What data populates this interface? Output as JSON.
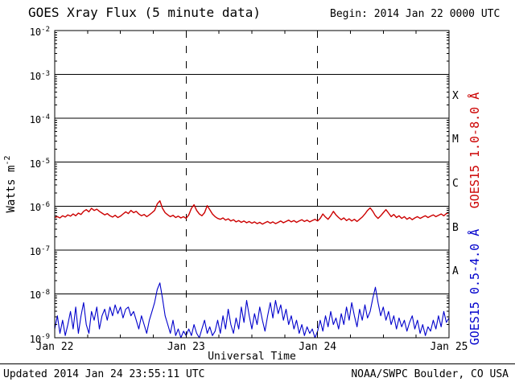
{
  "header": {
    "title": "GOES Xray Flux (5 minute data)",
    "begin_label": "Begin:  2014 Jan 22 0000 UTC"
  },
  "axes": {
    "ylabel_text": "Watts m",
    "ylabel_sup": "-2",
    "xlabel": "Universal Time"
  },
  "series_labels": {
    "long": "GOES15 1.0-8.0 Å",
    "short": "GOES15 0.5-4.0 Å"
  },
  "colors": {
    "long": "#cc0000",
    "short": "#0000cc",
    "axis": "#000000",
    "background": "#ffffff"
  },
  "footer": {
    "updated": "Updated 2014 Jan 24 23:55:11 UTC",
    "source": "NOAA/SWPC Boulder, CO USA"
  },
  "chart_data": {
    "type": "line",
    "title": "GOES Xray Flux (5 minute data)",
    "x_axis": {
      "label": "Universal Time",
      "start": "2014 Jan 22 0000 UTC",
      "span_days": 3,
      "tick_days": [
        0,
        1,
        2,
        3
      ],
      "tick_labels": [
        "Jan 22",
        "Jan 23",
        "Jan 24",
        "Jan 25"
      ],
      "grid_days": [
        1,
        2
      ],
      "minor_tick_interval_days": 0.25
    },
    "y_axis": {
      "label": "Watts m^-2",
      "scale": "log10",
      "max_exp": -2,
      "min_exp": -9,
      "tick_exponents": [
        -2,
        -3,
        -4,
        -5,
        -6,
        -7,
        -8,
        -9
      ],
      "grid_exponents": [
        -3,
        -4,
        -5,
        -6,
        -7,
        -8
      ],
      "flux_classes": [
        {
          "letter": "X",
          "between_exp": [
            -4,
            -3
          ]
        },
        {
          "letter": "M",
          "between_exp": [
            -5,
            -4
          ]
        },
        {
          "letter": "C",
          "between_exp": [
            -6,
            -5
          ]
        },
        {
          "letter": "B",
          "between_exp": [
            -7,
            -6
          ]
        },
        {
          "letter": "A",
          "between_exp": [
            -8,
            -7
          ]
        }
      ]
    },
    "series": [
      {
        "name": "GOES15 1.0-8.0 Å",
        "color": "#cc0000",
        "log10_flux": [
          -6.26,
          -6.24,
          -6.27,
          -6.22,
          -6.25,
          -6.2,
          -6.23,
          -6.18,
          -6.22,
          -6.16,
          -6.19,
          -6.12,
          -6.08,
          -6.13,
          -6.05,
          -6.1,
          -6.07,
          -6.12,
          -6.16,
          -6.2,
          -6.17,
          -6.22,
          -6.25,
          -6.21,
          -6.26,
          -6.23,
          -6.18,
          -6.13,
          -6.17,
          -6.1,
          -6.15,
          -6.12,
          -6.18,
          -6.22,
          -6.19,
          -6.24,
          -6.2,
          -6.15,
          -6.1,
          -5.95,
          -5.88,
          -6.05,
          -6.15,
          -6.2,
          -6.24,
          -6.21,
          -6.26,
          -6.23,
          -6.27,
          -6.24,
          -6.28,
          -6.2,
          -6.05,
          -5.97,
          -6.1,
          -6.18,
          -6.22,
          -6.15,
          -5.99,
          -6.08,
          -6.18,
          -6.24,
          -6.28,
          -6.3,
          -6.27,
          -6.32,
          -6.29,
          -6.34,
          -6.31,
          -6.36,
          -6.33,
          -6.37,
          -6.34,
          -6.38,
          -6.35,
          -6.39,
          -6.36,
          -6.4,
          -6.37,
          -6.41,
          -6.38,
          -6.35,
          -6.39,
          -6.36,
          -6.4,
          -6.37,
          -6.34,
          -6.38,
          -6.35,
          -6.32,
          -6.36,
          -6.33,
          -6.37,
          -6.34,
          -6.31,
          -6.35,
          -6.32,
          -6.36,
          -6.33,
          -6.3,
          -6.34,
          -6.28,
          -6.18,
          -6.25,
          -6.3,
          -6.22,
          -6.12,
          -6.2,
          -6.26,
          -6.31,
          -6.27,
          -6.33,
          -6.29,
          -6.34,
          -6.3,
          -6.35,
          -6.3,
          -6.25,
          -6.18,
          -6.1,
          -6.04,
          -6.12,
          -6.22,
          -6.28,
          -6.22,
          -6.15,
          -6.08,
          -6.16,
          -6.24,
          -6.19,
          -6.26,
          -6.22,
          -6.28,
          -6.24,
          -6.3,
          -6.26,
          -6.31,
          -6.27,
          -6.24,
          -6.28,
          -6.25,
          -6.22,
          -6.26,
          -6.23,
          -6.2,
          -6.24,
          -6.21,
          -6.18,
          -6.22,
          -6.17,
          -6.15
        ]
      },
      {
        "name": "GOES15 0.5-4.0 Å",
        "color": "#0000cc",
        "log10_flux": [
          -8.8,
          -8.5,
          -8.9,
          -8.6,
          -8.95,
          -8.7,
          -8.4,
          -8.8,
          -8.3,
          -8.9,
          -8.5,
          -8.2,
          -8.7,
          -8.9,
          -8.4,
          -8.6,
          -8.3,
          -8.8,
          -8.5,
          -8.35,
          -8.6,
          -8.3,
          -8.5,
          -8.25,
          -8.45,
          -8.3,
          -8.55,
          -8.35,
          -8.3,
          -8.5,
          -8.4,
          -8.6,
          -8.8,
          -8.5,
          -8.7,
          -8.9,
          -8.6,
          -8.4,
          -8.2,
          -7.9,
          -7.75,
          -8.1,
          -8.5,
          -8.7,
          -8.9,
          -8.6,
          -8.95,
          -8.8,
          -9.0,
          -8.85,
          -8.95,
          -8.8,
          -8.95,
          -8.7,
          -8.9,
          -9.0,
          -8.8,
          -8.6,
          -8.9,
          -8.75,
          -8.95,
          -8.85,
          -8.6,
          -8.9,
          -8.5,
          -8.8,
          -8.35,
          -8.7,
          -8.9,
          -8.55,
          -8.8,
          -8.3,
          -8.65,
          -8.15,
          -8.5,
          -8.8,
          -8.45,
          -8.7,
          -8.3,
          -8.6,
          -8.85,
          -8.5,
          -8.2,
          -8.55,
          -8.15,
          -8.45,
          -8.25,
          -8.6,
          -8.35,
          -8.7,
          -8.5,
          -8.8,
          -8.6,
          -8.9,
          -8.7,
          -8.95,
          -8.75,
          -8.9,
          -8.8,
          -9.0,
          -8.85,
          -8.6,
          -8.85,
          -8.5,
          -8.75,
          -8.4,
          -8.7,
          -8.55,
          -8.8,
          -8.45,
          -8.7,
          -8.3,
          -8.6,
          -8.2,
          -8.5,
          -8.75,
          -8.35,
          -8.6,
          -8.25,
          -8.55,
          -8.4,
          -8.1,
          -7.85,
          -8.2,
          -8.5,
          -8.3,
          -8.6,
          -8.4,
          -8.7,
          -8.5,
          -8.8,
          -8.55,
          -8.75,
          -8.6,
          -8.85,
          -8.65,
          -8.5,
          -8.8,
          -8.6,
          -8.9,
          -8.7,
          -8.95,
          -8.75,
          -8.85,
          -8.6,
          -8.8,
          -8.5,
          -8.75,
          -8.4,
          -8.65,
          -8.55
        ]
      }
    ]
  }
}
